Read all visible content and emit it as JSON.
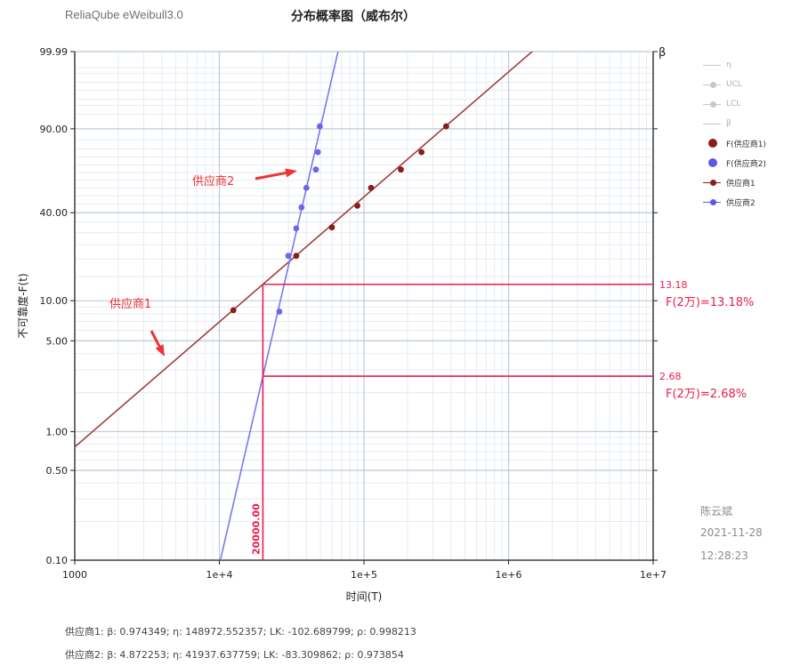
{
  "header": {
    "app_title": "ReliaQube eWeibull3.0",
    "chart_title": "分布概率图（威布尔）"
  },
  "chart_data": {
    "type": "scatter",
    "xlabel": "时间(T)",
    "ylabel": "不可靠度-F(t)",
    "right_axis_label": "β",
    "xscale": "log",
    "yscale": "weibull",
    "xlim": [
      1000,
      10000000
    ],
    "ylim": [
      0.1,
      99.99
    ],
    "x_ticks": [
      {
        "value": 1000,
        "label": "1000"
      },
      {
        "value": 10000,
        "label": "1e+4"
      },
      {
        "value": 100000,
        "label": "1e+5"
      },
      {
        "value": 1000000,
        "label": "1e+6"
      },
      {
        "value": 10000000,
        "label": "1e+7"
      }
    ],
    "y_ticks": [
      {
        "value": 99.99,
        "label": "99.99"
      },
      {
        "value": 90.0,
        "label": "90.00"
      },
      {
        "value": 40.0,
        "label": "40.00"
      },
      {
        "value": 10.0,
        "label": "10.00"
      },
      {
        "value": 5.0,
        "label": "5.00"
      },
      {
        "value": 1.0,
        "label": "1.00"
      },
      {
        "value": 0.5,
        "label": "0.50"
      },
      {
        "value": 0.1,
        "label": "0.10"
      }
    ],
    "grid": true,
    "series": [
      {
        "name": "供应商1",
        "beta": 0.974349,
        "eta": 148972.552357,
        "color": "#a0403c",
        "point_color": "#8b1c1c",
        "points": [
          [
            12500,
            8.5
          ],
          [
            34000,
            21.0
          ],
          [
            60000,
            32.5
          ],
          [
            90000,
            44.0
          ],
          [
            112000,
            55.0
          ],
          [
            180000,
            67.0
          ],
          [
            250000,
            78.0
          ],
          [
            370000,
            91.0
          ]
        ]
      },
      {
        "name": "供应商2",
        "beta": 4.872253,
        "eta": 41937.637759,
        "color": "#7b78f0",
        "point_color": "#6a67ee",
        "points": [
          [
            26000,
            8.3
          ],
          [
            30000,
            21.0
          ],
          [
            34000,
            32.0
          ],
          [
            37000,
            43.0
          ],
          [
            40000,
            55.0
          ],
          [
            46500,
            67.0
          ],
          [
            48000,
            78.0
          ],
          [
            49500,
            91.0
          ]
        ]
      }
    ],
    "legend": {
      "position": "right",
      "items": [
        {
          "label": "η",
          "style": "line",
          "muted": true
        },
        {
          "label": "UCL",
          "style": "line-dot",
          "muted": true
        },
        {
          "label": "LCL",
          "style": "line-dot",
          "muted": true
        },
        {
          "label": "β",
          "style": "line",
          "muted": true
        },
        {
          "label": "F(供应商1)",
          "style": "dot",
          "color": "#8b1c1c"
        },
        {
          "label": "F(供应商2)",
          "style": "dot",
          "color": "#5a58e8"
        },
        {
          "label": "供应商1",
          "style": "line-dot",
          "color": "#8b1c1c"
        },
        {
          "label": "供应商2",
          "style": "line-dot",
          "color": "#5a58e8"
        }
      ]
    },
    "annotations": {
      "vertical_line": {
        "x": 20000,
        "label": "20000.00"
      },
      "horizontal_lines": [
        {
          "y": 13.18,
          "label": "13.18",
          "text": "F(2万)=13.18%"
        },
        {
          "y": 2.68,
          "label": "2.68",
          "text": "F(2万)=2.68%"
        }
      ],
      "callouts": [
        {
          "text": "供应商1",
          "series": "供应商1"
        },
        {
          "text": "供应商2",
          "series": "供应商2"
        }
      ],
      "annotation_color": "#ea1c50",
      "callout_color": "#ee3333"
    }
  },
  "signature": {
    "name": "陈云斌",
    "date": "2021-11-28",
    "time": "12:28:23"
  },
  "notes": [
    "供应商1: β: 0.974349; η: 148972.552357; LK: -102.689799; ρ: 0.998213",
    "供应商2: β: 4.872253; η: 41937.637759; LK: -83.309862; ρ: 0.973854"
  ]
}
